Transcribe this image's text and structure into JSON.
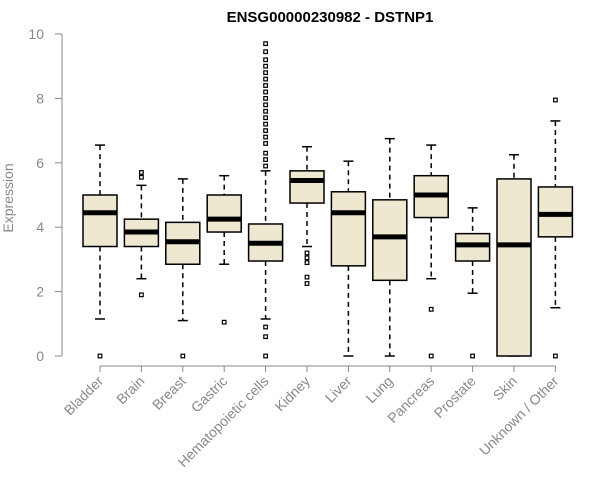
{
  "chart_data": {
    "type": "boxplot",
    "title": "ENSG00000230982 - DSTNP1",
    "xlabel": "",
    "ylabel": "Expression",
    "ylim": [
      0,
      10
    ],
    "yticks": [
      0,
      2,
      4,
      6,
      8,
      10
    ],
    "colors": {
      "box_fill": "#efe8d0",
      "stroke": "#000000",
      "axis": "#888888"
    },
    "categories": [
      "Bladder",
      "Brain",
      "Breast",
      "Gastric",
      "Hematopoietic cells",
      "Kidney",
      "Liver",
      "Lung",
      "Pancreas",
      "Prostate",
      "Skin",
      "Unknown / Other"
    ],
    "series": [
      {
        "name": "Bladder",
        "min": 1.15,
        "q1": 3.4,
        "median": 4.45,
        "q3": 5.0,
        "max": 6.55,
        "outliers": [
          0.0
        ]
      },
      {
        "name": "Brain",
        "min": 2.4,
        "q1": 3.4,
        "median": 3.85,
        "q3": 4.25,
        "max": 5.3,
        "outliers": [
          1.9,
          5.55,
          5.7
        ]
      },
      {
        "name": "Breast",
        "min": 1.1,
        "q1": 2.85,
        "median": 3.55,
        "q3": 4.15,
        "max": 5.5,
        "outliers": [
          0.0
        ]
      },
      {
        "name": "Gastric",
        "min": 2.85,
        "q1": 3.85,
        "median": 4.25,
        "q3": 5.0,
        "max": 5.6,
        "outliers": [
          1.05
        ]
      },
      {
        "name": "Hematopoietic cells",
        "min": 1.15,
        "q1": 2.95,
        "median": 3.5,
        "q3": 4.1,
        "max": 5.75,
        "outliers": [
          0.0,
          0.6,
          0.9,
          5.9,
          6.1,
          6.3,
          6.6,
          6.8,
          7.0,
          7.2,
          7.4,
          7.6,
          7.8,
          8.0,
          8.2,
          8.4,
          8.6,
          8.8,
          9.0,
          9.2,
          9.45,
          9.7
        ]
      },
      {
        "name": "Kidney",
        "min": 3.4,
        "q1": 4.75,
        "median": 5.45,
        "q3": 5.75,
        "max": 6.5,
        "outliers": [
          2.25,
          2.45,
          2.9,
          3.05,
          3.2
        ]
      },
      {
        "name": "Liver",
        "min": 0.0,
        "q1": 2.8,
        "median": 4.45,
        "q3": 5.1,
        "max": 6.05,
        "outliers": []
      },
      {
        "name": "Lung",
        "min": 0.0,
        "q1": 2.35,
        "median": 3.7,
        "q3": 4.85,
        "max": 6.75,
        "outliers": []
      },
      {
        "name": "Pancreas",
        "min": 2.4,
        "q1": 4.3,
        "median": 5.0,
        "q3": 5.6,
        "max": 6.55,
        "outliers": [
          0.0,
          1.45
        ]
      },
      {
        "name": "Prostate",
        "min": 1.95,
        "q1": 2.95,
        "median": 3.45,
        "q3": 3.8,
        "max": 4.6,
        "outliers": [
          0.0
        ]
      },
      {
        "name": "Skin",
        "min": 0.0,
        "q1": 0.0,
        "median": 3.45,
        "q3": 5.5,
        "max": 6.25,
        "outliers": []
      },
      {
        "name": "Unknown / Other",
        "min": 1.5,
        "q1": 3.7,
        "median": 4.4,
        "q3": 5.25,
        "max": 7.3,
        "outliers": [
          0.0,
          7.95
        ]
      }
    ]
  }
}
